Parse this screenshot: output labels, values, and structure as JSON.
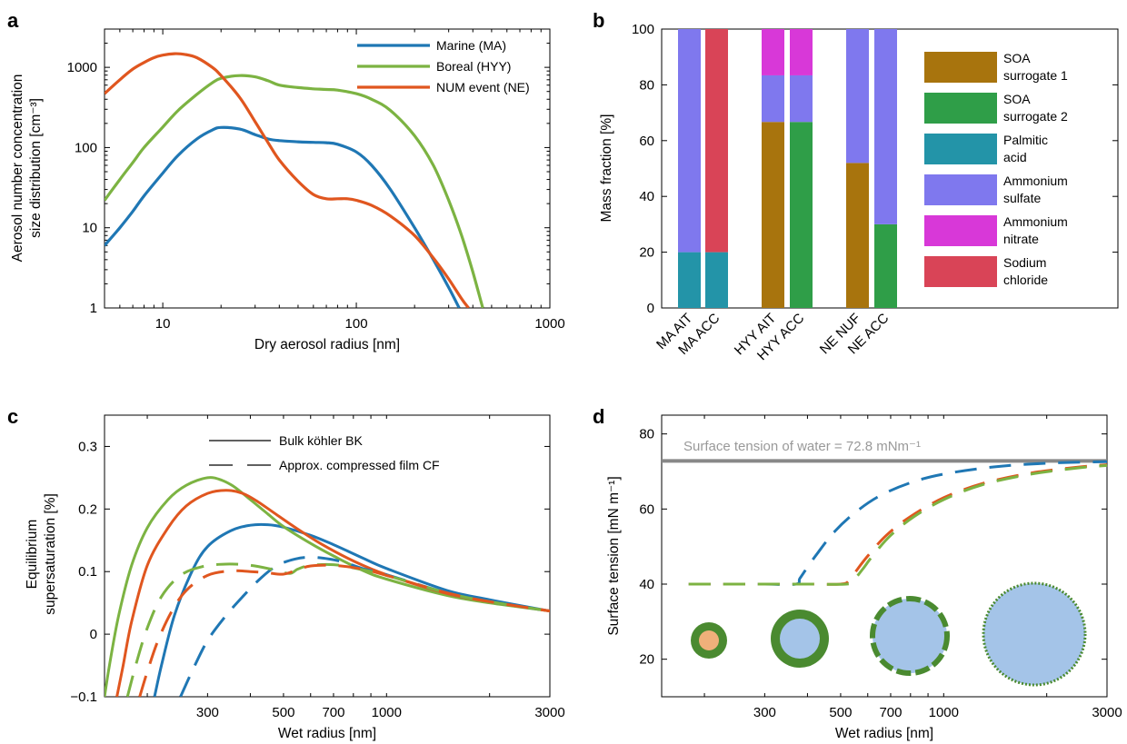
{
  "panels": {
    "a": {
      "letter": "a",
      "xlabel": "Dry aerosol radius [nm]",
      "ylabel_line1": "Aerosol number concentration",
      "ylabel_line2": "size distribution [cm⁻³]",
      "xticks": [
        {
          "v": 10,
          "label": "10"
        },
        {
          "v": 100,
          "label": "100"
        },
        {
          "v": 1000,
          "label": "1000"
        }
      ],
      "yticks": [
        {
          "v": 1,
          "label": "1"
        },
        {
          "v": 10,
          "label": "10"
        },
        {
          "v": 100,
          "label": "100"
        },
        {
          "v": 1000,
          "label": "1000"
        }
      ]
    },
    "b": {
      "letter": "b",
      "ylabel": "Mass fraction [%]",
      "yticks": [
        {
          "v": 0,
          "label": "0"
        },
        {
          "v": 20,
          "label": "20"
        },
        {
          "v": 40,
          "label": "40"
        },
        {
          "v": 60,
          "label": "60"
        },
        {
          "v": 80,
          "label": "80"
        },
        {
          "v": 100,
          "label": "100"
        }
      ]
    },
    "c": {
      "letter": "c",
      "xlabel": "Wet radius [nm]",
      "ylabel_line1": "Equilibrium",
      "ylabel_line2": "supersaturation [%]",
      "legend_solid": "Bulk köhler BK",
      "legend_dashed": "Approx. compressed film CF",
      "xticks": [
        {
          "v": 300,
          "label": "300"
        },
        {
          "v": 500,
          "label": "500"
        },
        {
          "v": 700,
          "label": "700"
        },
        {
          "v": 1000,
          "label": "1000"
        },
        {
          "v": 3000,
          "label": "3000"
        }
      ],
      "yticks": [
        {
          "v": -0.1,
          "label": "−0.1"
        },
        {
          "v": 0,
          "label": "0"
        },
        {
          "v": 0.1,
          "label": "0.1"
        },
        {
          "v": 0.2,
          "label": "0.2"
        },
        {
          "v": 0.3,
          "label": "0.3"
        }
      ]
    },
    "d": {
      "letter": "d",
      "xlabel": "Wet radius [nm]",
      "ylabel": "Surface tension [mN m⁻¹]",
      "water_label": "Surface tension of water = 72.8 mNm⁻¹",
      "xticks": [
        {
          "v": 300,
          "label": "300"
        },
        {
          "v": 500,
          "label": "500"
        },
        {
          "v": 700,
          "label": "700"
        },
        {
          "v": 1000,
          "label": "1000"
        },
        {
          "v": 3000,
          "label": "3000"
        }
      ],
      "yticks": [
        {
          "v": 20,
          "label": "20"
        },
        {
          "v": 40,
          "label": "40"
        },
        {
          "v": 60,
          "label": "60"
        },
        {
          "v": 80,
          "label": "80"
        }
      ]
    }
  },
  "colors": {
    "marine": "#1f77b4",
    "boreal": "#7cb342",
    "num_event": "#e0561f",
    "soa1": "#a8740d",
    "soa2": "#2f9e48",
    "palmitic": "#2394a8",
    "ammonium_sulfate": "#7f78ee",
    "ammonium_nitrate": "#d838d8",
    "sodium_chloride": "#d94457",
    "water": "#888888",
    "droplet_shell": "#4a8a30",
    "droplet_core": "#f0b07a",
    "droplet_water": "#a4c4e8"
  },
  "chart_data": [
    {
      "panel": "a",
      "type": "line",
      "xlabel": "Dry aerosol radius [nm]",
      "ylabel": "Aerosol number concentration size distribution [cm⁻³]",
      "xscale": "log",
      "yscale": "log",
      "xlim": [
        5,
        1000
      ],
      "ylim": [
        1,
        3000
      ],
      "legend_position": "top-right",
      "series": [
        {
          "name": "Marine (MA)",
          "color_key": "marine",
          "x": [
            5,
            6,
            7,
            8,
            10,
            12,
            15,
            18,
            20,
            25,
            30,
            35,
            40,
            50,
            60,
            70,
            80,
            100,
            120,
            150,
            200,
            250,
            300,
            340
          ],
          "y": [
            6,
            10,
            16,
            25,
            48,
            80,
            128,
            165,
            178,
            170,
            145,
            128,
            122,
            118,
            116,
            115,
            110,
            88,
            60,
            30,
            10,
            4,
            1.8,
            1
          ]
        },
        {
          "name": "Boreal (HYY)",
          "color_key": "boreal",
          "x": [
            5,
            6,
            7,
            8,
            10,
            12,
            15,
            18,
            20,
            25,
            30,
            35,
            40,
            50,
            60,
            70,
            80,
            100,
            120,
            150,
            200,
            250,
            300,
            350,
            400,
            450
          ],
          "y": [
            22,
            40,
            65,
            100,
            180,
            290,
            460,
            640,
            730,
            790,
            760,
            680,
            600,
            560,
            540,
            530,
            520,
            470,
            400,
            290,
            140,
            60,
            22,
            8,
            2.8,
            1
          ]
        },
        {
          "name": "NUM event (NE)",
          "color_key": "num_event",
          "x": [
            5,
            6,
            7,
            8,
            9,
            10,
            11.5,
            13,
            15,
            18,
            20,
            25,
            30,
            35,
            40,
            50,
            60,
            70,
            80,
            90,
            100,
            120,
            150,
            200,
            250,
            300,
            350,
            380
          ],
          "y": [
            470,
            700,
            950,
            1150,
            1320,
            1420,
            1480,
            1450,
            1320,
            1000,
            790,
            420,
            210,
            115,
            70,
            38,
            26,
            23,
            23,
            23,
            22,
            19,
            14,
            8,
            4.2,
            2.3,
            1.3,
            1
          ]
        }
      ]
    },
    {
      "panel": "b",
      "type": "bar",
      "stacked": true,
      "ylabel": "Mass fraction [%]",
      "ylim": [
        0,
        100
      ],
      "categories": [
        "MA AIT",
        "MA ACC",
        "HYY AIT",
        "HYY ACC",
        "NE NUF",
        "NE ACC"
      ],
      "legend_position": "right",
      "series": [
        {
          "name": "SOA surrogate 1",
          "color_key": "soa1",
          "values": [
            0,
            0,
            66.7,
            0,
            52,
            0
          ]
        },
        {
          "name": "SOA surrogate 2",
          "color_key": "soa2",
          "values": [
            0,
            0,
            0,
            66.7,
            0,
            30
          ]
        },
        {
          "name": "Palmitic acid",
          "color_key": "palmitic",
          "values": [
            20,
            20,
            0,
            0,
            0,
            0
          ]
        },
        {
          "name": "Ammonium sulfate",
          "color_key": "ammonium_sulfate",
          "values": [
            80,
            0,
            16.7,
            16.7,
            48,
            70
          ]
        },
        {
          "name": "Ammonium nitrate",
          "color_key": "ammonium_nitrate",
          "values": [
            0,
            0,
            16.6,
            16.6,
            0,
            0
          ]
        },
        {
          "name": "Sodium chloride",
          "color_key": "sodium_chloride",
          "values": [
            0,
            80,
            0,
            0,
            0,
            0
          ]
        }
      ],
      "legend_labels": [
        [
          "SOA",
          "surrogate 1"
        ],
        [
          "SOA",
          "surrogate 2"
        ],
        [
          "Palmitic",
          "acid"
        ],
        [
          "Ammonium",
          "sulfate"
        ],
        [
          "Ammonium",
          "nitrate"
        ],
        [
          "Sodium",
          "chloride"
        ]
      ]
    },
    {
      "panel": "c",
      "type": "line",
      "xlabel": "Wet radius [nm]",
      "ylabel": "Equilibrium supersaturation [%]",
      "xscale": "log",
      "xlim": [
        150,
        3000
      ],
      "ylim": [
        -0.1,
        0.35
      ],
      "legend_position": "top",
      "series": [
        {
          "name": "Bulk köhler BK",
          "color_key": "marine",
          "style": "solid",
          "x": [
            210,
            220,
            240,
            270,
            300,
            350,
            400,
            450,
            500,
            600,
            700,
            850,
            1000,
            1500,
            2000,
            3000
          ],
          "y": [
            -0.1,
            -0.05,
            0.03,
            0.1,
            0.14,
            0.165,
            0.174,
            0.175,
            0.171,
            0.158,
            0.143,
            0.122,
            0.105,
            0.07,
            0.055,
            0.037
          ]
        },
        {
          "name": "Bulk köhler BK",
          "color_key": "boreal",
          "style": "solid",
          "x": [
            150,
            155,
            165,
            180,
            200,
            230,
            260,
            300,
            330,
            360,
            400,
            450,
            500,
            600,
            700,
            850,
            1000,
            1500,
            2000,
            3000
          ],
          "y": [
            -0.1,
            -0.05,
            0.03,
            0.11,
            0.17,
            0.215,
            0.238,
            0.25,
            0.246,
            0.235,
            0.215,
            0.192,
            0.172,
            0.145,
            0.125,
            0.102,
            0.088,
            0.062,
            0.05,
            0.037
          ]
        },
        {
          "name": "Bulk köhler BK",
          "color_key": "num_event",
          "style": "solid",
          "x": [
            163,
            170,
            180,
            200,
            230,
            260,
            300,
            340,
            380,
            420,
            480,
            550,
            650,
            800,
            1000,
            1500,
            2000,
            3000
          ],
          "y": [
            -0.1,
            -0.05,
            0.02,
            0.11,
            0.17,
            0.205,
            0.225,
            0.23,
            0.225,
            0.212,
            0.19,
            0.168,
            0.143,
            0.117,
            0.095,
            0.065,
            0.052,
            0.037
          ]
        },
        {
          "name": "Approx. compressed film CF",
          "color_key": "marine",
          "style": "dashed",
          "x": [
            250,
            270,
            300,
            340,
            380,
            430,
            480,
            540,
            600,
            680,
            750,
            850,
            1000,
            1500,
            2000,
            3000
          ],
          "y": [
            -0.1,
            -0.06,
            -0.01,
            0.03,
            0.06,
            0.09,
            0.11,
            0.12,
            0.123,
            0.12,
            0.115,
            0.105,
            0.095,
            0.066,
            0.052,
            0.037
          ]
        },
        {
          "name": "Approx. compressed film CF",
          "color_key": "boreal",
          "style": "dashed",
          "x": [
            175,
            185,
            200,
            220,
            250,
            290,
            340,
            400,
            460,
            520,
            550,
            600,
            700,
            800,
            1000,
            1500,
            2000,
            3000
          ],
          "y": [
            -0.1,
            -0.05,
            0.01,
            0.06,
            0.094,
            0.108,
            0.112,
            0.11,
            0.104,
            0.097,
            0.104,
            0.11,
            0.111,
            0.106,
            0.094,
            0.066,
            0.052,
            0.037
          ]
        },
        {
          "name": "Approx. compressed film CF",
          "color_key": "num_event",
          "style": "dashed",
          "x": [
            190,
            200,
            215,
            235,
            260,
            300,
            350,
            400,
            450,
            500,
            550,
            600,
            700,
            850,
            1000,
            1500,
            2000,
            3000
          ],
          "y": [
            -0.1,
            -0.06,
            -0.01,
            0.035,
            0.07,
            0.094,
            0.101,
            0.1,
            0.098,
            0.096,
            0.103,
            0.109,
            0.11,
            0.104,
            0.094,
            0.066,
            0.052,
            0.037
          ]
        }
      ]
    },
    {
      "panel": "d",
      "type": "line",
      "xlabel": "Wet radius [nm]",
      "ylabel": "Surface tension [mN m⁻¹]",
      "xscale": "log",
      "xlim": [
        150,
        3000
      ],
      "ylim": [
        10,
        85
      ],
      "reference_line": {
        "y": 72.8,
        "color_key": "water"
      },
      "series": [
        {
          "color_key": "marine",
          "style": "dashed",
          "x": [
            180,
            250,
            300,
            370,
            380,
            400,
            430,
            480,
            550,
            650,
            800,
            1000,
            1400,
            2000,
            3000
          ],
          "y": [
            40,
            40,
            40,
            40,
            41.5,
            44.5,
            48.5,
            54,
            59,
            63.5,
            67,
            69.3,
            71.2,
            72.2,
            72.6
          ]
        },
        {
          "name": "",
          "color_key": "num_event",
          "style": "dashed",
          "x": [
            180,
            300,
            400,
            500,
            530,
            560,
            600,
            680,
            800,
            1000,
            1300,
            1800,
            2500,
            3000
          ],
          "y": [
            40,
            40,
            40,
            40,
            41,
            44,
            47.5,
            53,
            58,
            63,
            66.8,
            69.6,
            71.2,
            71.8
          ]
        },
        {
          "color_key": "boreal",
          "style": "dashed",
          "x": [
            180,
            300,
            400,
            520,
            545,
            580,
            620,
            700,
            820,
            1000,
            1300,
            1800,
            2500,
            3000
          ],
          "y": [
            40,
            40,
            40,
            40,
            41,
            44,
            47.5,
            53,
            58,
            62.5,
            66.5,
            69.3,
            71,
            71.6
          ]
        }
      ]
    }
  ]
}
